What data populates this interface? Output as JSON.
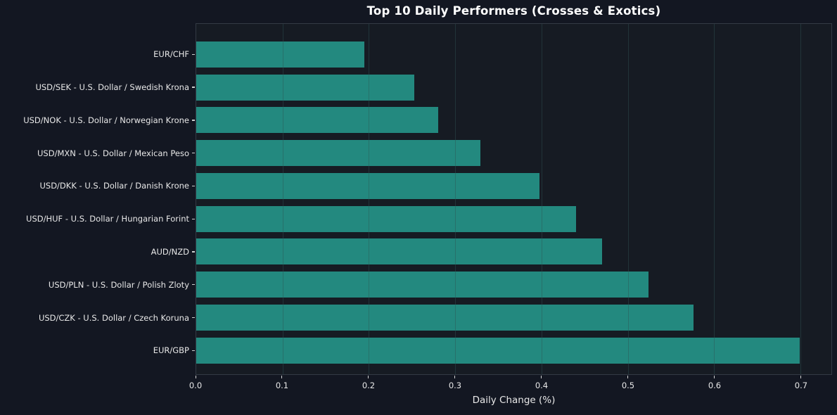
{
  "chart_data": {
    "type": "bar",
    "orientation": "horizontal",
    "title": "Top 10 Daily Performers (Crosses & Exotics)",
    "xlabel": "Daily Change (%)",
    "ylabel": "",
    "category_order": "top-to-bottom",
    "categories": [
      "EUR/CHF",
      "USD/SEK - U.S. Dollar / Swedish Krona",
      "USD/NOK - U.S. Dollar / Norwegian Krone",
      "USD/MXN - U.S. Dollar / Mexican Peso",
      "USD/DKK - U.S. Dollar / Danish Krone",
      "USD/HUF - U.S. Dollar / Hungarian Forint",
      "AUD/NZD",
      "USD/PLN - U.S. Dollar / Polish Zloty",
      "USD/CZK - U.S. Dollar / Czech Koruna",
      "EUR/GBP"
    ],
    "values": [
      0.195,
      0.253,
      0.28,
      0.329,
      0.398,
      0.44,
      0.47,
      0.524,
      0.576,
      0.699
    ],
    "xlim": [
      0,
      0.7358
    ],
    "xticks": [
      0.0,
      0.1,
      0.2,
      0.3,
      0.4,
      0.5,
      0.6,
      0.7
    ],
    "xtick_labels": [
      "0.0",
      "0.1",
      "0.2",
      "0.3",
      "0.4",
      "0.5",
      "0.6",
      "0.7"
    ],
    "grid": true,
    "grid_axis": "x",
    "legend": false,
    "colors": {
      "figure_background": "#131722",
      "plot_background": "#161b23",
      "bar": "#23897f",
      "grid": "rgba(46,84,84,0.45)",
      "spine": "#333a44",
      "tick": "#d0d0d0",
      "text": "#e8e8e8",
      "title_text": "#ffffff"
    }
  }
}
